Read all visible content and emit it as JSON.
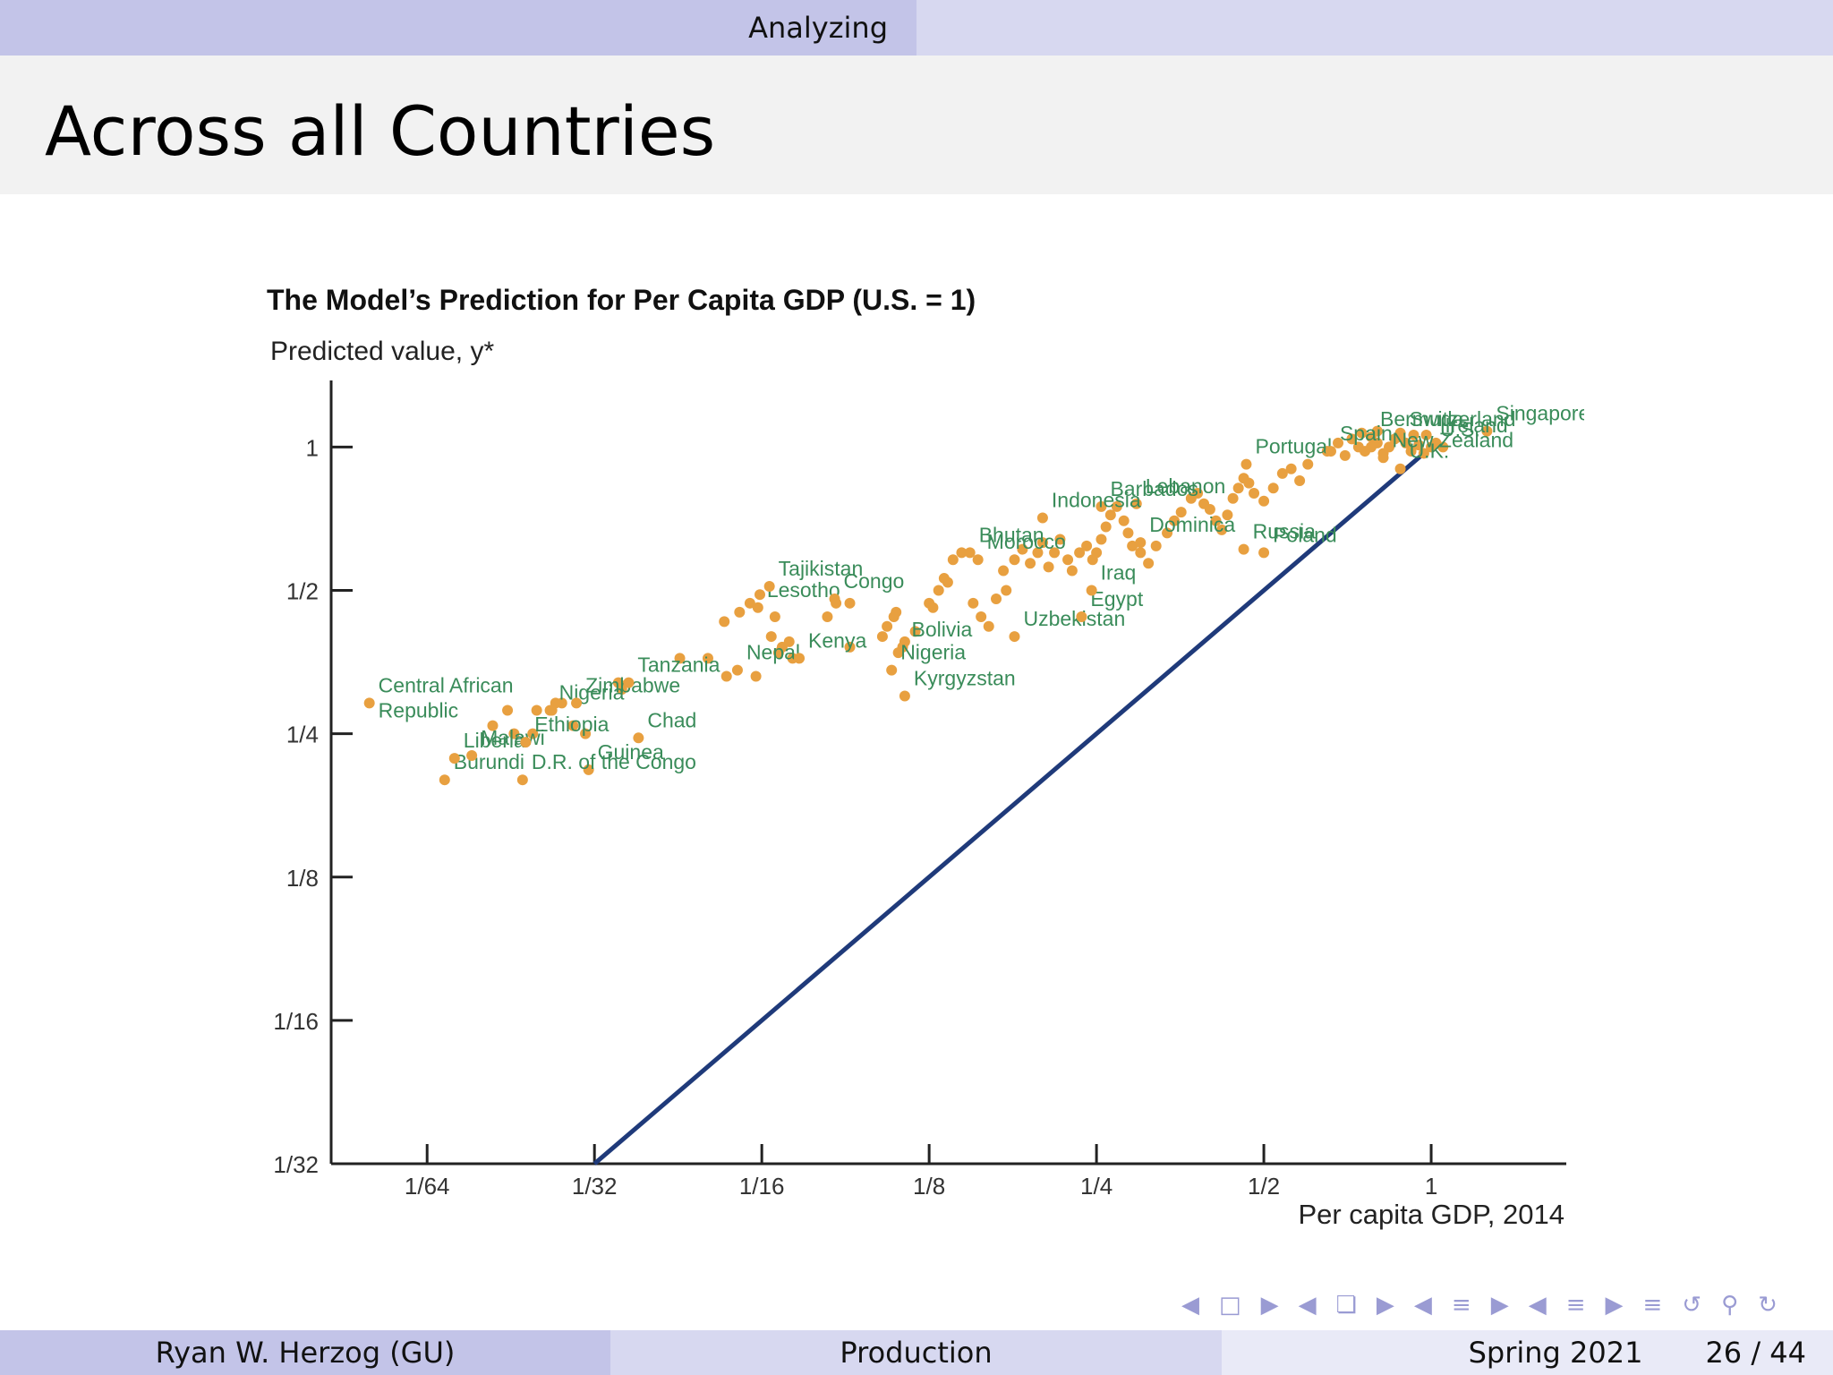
{
  "header": {
    "section": "Analyzing"
  },
  "frame": {
    "title": "Across all Countries"
  },
  "chart_data": {
    "type": "scatter",
    "title": "The Model’s Prediction for Per Capita GDP (U.S. = 1)",
    "ylabel": "Predicted value, y*",
    "xlabel": "Per capita GDP, 2014",
    "log_scale": "log2",
    "xlim": [
      0.0105,
      1.75
    ],
    "ylim": [
      0.03125,
      1.38
    ],
    "x_ticks": [
      {
        "v": 0.015625,
        "label": "1/64"
      },
      {
        "v": 0.03125,
        "label": "1/32"
      },
      {
        "v": 0.0625,
        "label": "1/16"
      },
      {
        "v": 0.125,
        "label": "1/8"
      },
      {
        "v": 0.25,
        "label": "1/4"
      },
      {
        "v": 0.5,
        "label": "1/2"
      },
      {
        "v": 1,
        "label": "1"
      }
    ],
    "y_ticks": [
      {
        "v": 0.03125,
        "label": "1/32"
      },
      {
        "v": 0.0625,
        "label": "1/16"
      },
      {
        "v": 0.125,
        "label": "1/8"
      },
      {
        "v": 0.25,
        "label": "1/4"
      },
      {
        "v": 0.5,
        "label": "1/2"
      },
      {
        "v": 1,
        "label": "1"
      }
    ],
    "line": {
      "name": "",
      "points": [
        [
          0.03125,
          0.03125
        ],
        [
          1,
          1
        ]
      ]
    },
    "labeled_points": [
      {
        "name": "Central African Republic",
        "x": 0.0123,
        "y": 0.29
      },
      {
        "name": "Burundi",
        "x": 0.0168,
        "y": 0.2
      },
      {
        "name": "Malawi",
        "x": 0.0188,
        "y": 0.225
      },
      {
        "name": "Liberia",
        "x": 0.0175,
        "y": 0.222
      },
      {
        "name": "Nigeria",
        "x": 0.026,
        "y": 0.28
      },
      {
        "name": "Ethiopia",
        "x": 0.0235,
        "y": 0.24
      },
      {
        "name": "Zimbabwe",
        "x": 0.029,
        "y": 0.29
      },
      {
        "name": "Tanzania",
        "x": 0.036,
        "y": 0.32
      },
      {
        "name": "Guinea",
        "x": 0.0305,
        "y": 0.21
      },
      {
        "name": "D.R. of the Congo",
        "x": 0.0232,
        "y": 0.2
      },
      {
        "name": "Chad",
        "x": 0.0375,
        "y": 0.245
      },
      {
        "name": "Lesotho",
        "x": 0.0615,
        "y": 0.46
      },
      {
        "name": "Tajikistan",
        "x": 0.0645,
        "y": 0.51
      },
      {
        "name": "Congo",
        "x": 0.0845,
        "y": 0.48
      },
      {
        "name": "Nepal",
        "x": 0.0565,
        "y": 0.34
      },
      {
        "name": "Kenya",
        "x": 0.073,
        "y": 0.36
      },
      {
        "name": "Bhutan",
        "x": 0.148,
        "y": 0.6
      },
      {
        "name": "Morocco",
        "x": 0.153,
        "y": 0.58
      },
      {
        "name": "Bolivia",
        "x": 0.112,
        "y": 0.38
      },
      {
        "name": "Nigeria",
        "x": 0.107,
        "y": 0.34
      },
      {
        "name": "Kyrgyzstan",
        "x": 0.113,
        "y": 0.3
      },
      {
        "name": "Barbados",
        "x": 0.255,
        "y": 0.75
      },
      {
        "name": "Lebanon",
        "x": 0.295,
        "y": 0.76
      },
      {
        "name": "Indonesia",
        "x": 0.2,
        "y": 0.71
      },
      {
        "name": "Uzbekistan",
        "x": 0.178,
        "y": 0.4
      },
      {
        "name": "Egypt",
        "x": 0.235,
        "y": 0.44
      },
      {
        "name": "Iraq",
        "x": 0.245,
        "y": 0.5
      },
      {
        "name": "Dominica",
        "x": 0.3,
        "y": 0.63
      },
      {
        "name": "Portugal",
        "x": 0.465,
        "y": 0.92
      },
      {
        "name": "Russia",
        "x": 0.46,
        "y": 0.61
      },
      {
        "name": "Poland",
        "x": 0.5,
        "y": 0.6
      },
      {
        "name": "Bermuda",
        "x": 0.78,
        "y": 1.05
      },
      {
        "name": "Spain",
        "x": 0.66,
        "y": 0.98
      },
      {
        "name": "Switzerland",
        "x": 0.88,
        "y": 1.05
      },
      {
        "name": "Singapore",
        "x": 1.26,
        "y": 1.08
      },
      {
        "name": "Ireland",
        "x": 1.02,
        "y": 1.02
      },
      {
        "name": "U.S.",
        "x": 1,
        "y": 1
      },
      {
        "name": "U.K.",
        "x": 0.88,
        "y": 0.9
      },
      {
        "name": "New Zealand",
        "x": 0.82,
        "y": 0.95
      }
    ],
    "points": [
      [
        0.0205,
        0.26
      ],
      [
        0.0218,
        0.28
      ],
      [
        0.0246,
        0.28
      ],
      [
        0.0262,
        0.28
      ],
      [
        0.0266,
        0.29
      ],
      [
        0.0242,
        0.25
      ],
      [
        0.0224,
        0.25
      ],
      [
        0.0273,
        0.29
      ],
      [
        0.0286,
        0.26
      ],
      [
        0.0301,
        0.25
      ],
      [
        0.0345,
        0.32
      ],
      [
        0.035,
        0.31
      ],
      [
        0.0445,
        0.36
      ],
      [
        0.05,
        0.36
      ],
      [
        0.054,
        0.33
      ],
      [
        0.061,
        0.33
      ],
      [
        0.0535,
        0.43
      ],
      [
        0.057,
        0.45
      ],
      [
        0.0595,
        0.47
      ],
      [
        0.062,
        0.49
      ],
      [
        0.066,
        0.44
      ],
      [
        0.068,
        0.38
      ],
      [
        0.07,
        0.39
      ],
      [
        0.067,
        0.37
      ],
      [
        0.071,
        0.36
      ],
      [
        0.065,
        0.4
      ],
      [
        0.085,
        0.47
      ],
      [
        0.09,
        0.47
      ],
      [
        0.082,
        0.44
      ],
      [
        0.09,
        0.38
      ],
      [
        0.103,
        0.4
      ],
      [
        0.105,
        0.42
      ],
      [
        0.108,
        0.44
      ],
      [
        0.109,
        0.45
      ],
      [
        0.113,
        0.39
      ],
      [
        0.118,
        0.41
      ],
      [
        0.11,
        0.37
      ],
      [
        0.125,
        0.47
      ],
      [
        0.13,
        0.5
      ],
      [
        0.135,
        0.52
      ],
      [
        0.127,
        0.46
      ],
      [
        0.133,
        0.53
      ],
      [
        0.138,
        0.58
      ],
      [
        0.143,
        0.6
      ],
      [
        0.15,
        0.47
      ],
      [
        0.155,
        0.44
      ],
      [
        0.16,
        0.42
      ],
      [
        0.165,
        0.48
      ],
      [
        0.17,
        0.55
      ],
      [
        0.172,
        0.5
      ],
      [
        0.178,
        0.58
      ],
      [
        0.184,
        0.61
      ],
      [
        0.19,
        0.57
      ],
      [
        0.196,
        0.6
      ],
      [
        0.2,
        0.63
      ],
      [
        0.205,
        0.56
      ],
      [
        0.21,
        0.6
      ],
      [
        0.215,
        0.64
      ],
      [
        0.222,
        0.58
      ],
      [
        0.226,
        0.55
      ],
      [
        0.233,
        0.6
      ],
      [
        0.24,
        0.62
      ],
      [
        0.246,
        0.58
      ],
      [
        0.25,
        0.6
      ],
      [
        0.255,
        0.64
      ],
      [
        0.26,
        0.68
      ],
      [
        0.265,
        0.72
      ],
      [
        0.272,
        0.75
      ],
      [
        0.28,
        0.7
      ],
      [
        0.285,
        0.66
      ],
      [
        0.29,
        0.62
      ],
      [
        0.3,
        0.6
      ],
      [
        0.31,
        0.57
      ],
      [
        0.32,
        0.62
      ],
      [
        0.335,
        0.66
      ],
      [
        0.345,
        0.7
      ],
      [
        0.355,
        0.73
      ],
      [
        0.37,
        0.78
      ],
      [
        0.38,
        0.8
      ],
      [
        0.39,
        0.76
      ],
      [
        0.4,
        0.74
      ],
      [
        0.41,
        0.7
      ],
      [
        0.42,
        0.67
      ],
      [
        0.43,
        0.72
      ],
      [
        0.44,
        0.78
      ],
      [
        0.45,
        0.82
      ],
      [
        0.46,
        0.86
      ],
      [
        0.47,
        0.84
      ],
      [
        0.48,
        0.8
      ],
      [
        0.5,
        0.77
      ],
      [
        0.52,
        0.82
      ],
      [
        0.54,
        0.88
      ],
      [
        0.56,
        0.9
      ],
      [
        0.58,
        0.85
      ],
      [
        0.6,
        0.92
      ],
      [
        0.65,
        0.98
      ],
      [
        0.68,
        1.02
      ],
      [
        0.7,
        0.96
      ],
      [
        0.72,
        1.04
      ],
      [
        0.74,
        1.0
      ],
      [
        0.76,
        0.98
      ],
      [
        0.78,
        1.0
      ],
      [
        0.8,
        1.02
      ],
      [
        0.82,
        0.97
      ],
      [
        0.84,
        1.0
      ],
      [
        0.86,
        1.04
      ],
      [
        0.9,
        1.02
      ],
      [
        0.92,
        0.98
      ],
      [
        0.95,
        1.01
      ],
      [
        0.97,
        0.97
      ],
      [
        1.05,
        1.0
      ],
      [
        0.75,
        1.07
      ],
      [
        0.8,
        1.08
      ],
      [
        0.88,
        1.07
      ],
      [
        0.93,
        1.06
      ],
      [
        0.98,
        1.06
      ]
    ]
  },
  "navigation": {
    "icons": [
      "nav-left-arrow",
      "frame-icon",
      "nav-right-arrow",
      "nav-left-arrow",
      "subsection-icon",
      "nav-right-arrow",
      "nav-left-arrow",
      "section-icon",
      "nav-right-arrow",
      "nav-left-arrow",
      "doc-icon",
      "nav-right-arrow",
      "align-icon",
      "undo-icon",
      "search-icon",
      "redo-icon"
    ]
  },
  "footer": {
    "author": "Ryan W. Herzog  (GU)",
    "title": "Production",
    "date": "Spring 2021",
    "page": "26 / 44"
  },
  "colors": {
    "point": "#e8a040",
    "label": "#3a8c5a",
    "line": "#1f3a7a",
    "axis": "#222222",
    "beamer_dark": "#c3c4e8",
    "beamer_light": "#d7d8f0"
  }
}
